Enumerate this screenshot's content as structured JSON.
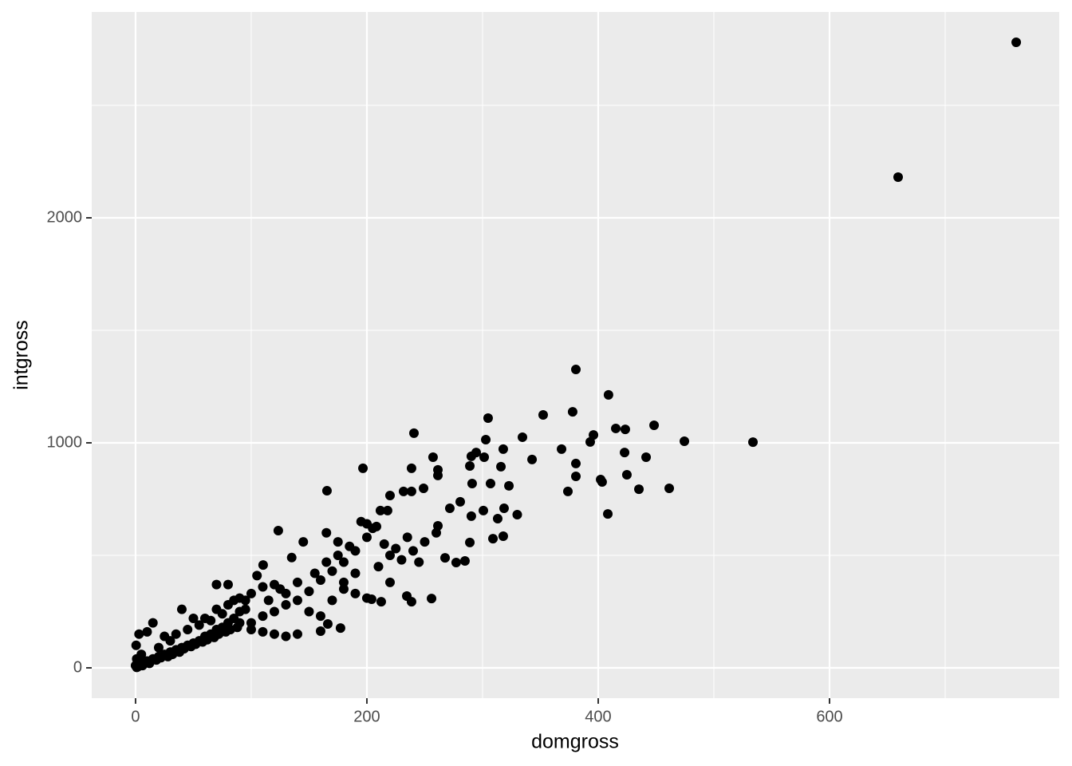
{
  "chart_data": {
    "type": "scatter",
    "x_label": "domgross",
    "y_label": "intgross",
    "color": "#000000",
    "grid": true,
    "xlim": [
      -37.9,
      798.6
    ],
    "ylim": [
      -134.8,
      2914.9
    ],
    "xticks": [
      0,
      200,
      400,
      600
    ],
    "yticks": [
      0,
      1000,
      2000
    ],
    "x": [
      761.4,
      659.3,
      533.8,
      474.5,
      461.4,
      448.3,
      441.4,
      435.2,
      424.8,
      422.8,
      423.4,
      415.2,
      408.9,
      408.3,
      403.4,
      402.1,
      395.9,
      393.1,
      380.7,
      380.7,
      380.7,
      377.9,
      373.8,
      368.3,
      352.4,
      342.8,
      334.5,
      330,
      322.8,
      318.6,
      317.9,
      317.9,
      315.9,
      313.1,
      309,
      306.9,
      304.8,
      302.8,
      301.4,
      300.7,
      294.5,
      290.3,
      291,
      290.3,
      289,
      289,
      284.8,
      280.7,
      277.2,
      271.7,
      267.6,
      261.4,
      261.4,
      261.4,
      257.2,
      255.9,
      249,
      240.7,
      238.6,
      238.6,
      238.6,
      234.5,
      231.7,
      220,
      217.9,
      211.7,
      208.3,
      204.1,
      212.4,
      196.6,
      165.5,
      123.4,
      110.3,
      166.2,
      177.2,
      160,
      200,
      190,
      180,
      170,
      160,
      150,
      140,
      130,
      120,
      110,
      100,
      210,
      220,
      230,
      240,
      250,
      245,
      260,
      180,
      175,
      165,
      155,
      145,
      135,
      125,
      115,
      105,
      95,
      90,
      85,
      80,
      75,
      70,
      65,
      60,
      55,
      50,
      45,
      40,
      35,
      30,
      25,
      20,
      15,
      10,
      5,
      2,
      1,
      0.5,
      3,
      10,
      15,
      40,
      50,
      70,
      80,
      90,
      100,
      110,
      120,
      130,
      140,
      150,
      160,
      170,
      180,
      190,
      200,
      190,
      220,
      200,
      205,
      215,
      225,
      235,
      195,
      185,
      175,
      165,
      60,
      70,
      80,
      90,
      100,
      110,
      120,
      130,
      140,
      30,
      20,
      25,
      35,
      45,
      55,
      65,
      75,
      85,
      95,
      5,
      8,
      12,
      18,
      22,
      28,
      32,
      38,
      42,
      48,
      52,
      58,
      62,
      68,
      72,
      78,
      82,
      88,
      0,
      1,
      3,
      6
    ],
    "y": [
      2780,
      2181,
      1003,
      1007,
      798,
      1078,
      936,
      794,
      858,
      957,
      1060,
      1064,
      1213,
      684,
      826,
      837,
      1035,
      1004,
      1326,
      908,
      851,
      1138,
      784,
      972,
      1124,
      926,
      1025,
      681,
      809,
      709,
      972,
      585,
      894,
      663,
      574,
      819,
      1110,
      1014,
      936,
      699,
      957,
      674,
      819,
      940,
      897,
      557,
      475,
      738,
      468,
      709,
      489,
      855,
      880,
      631,
      936,
      308,
      798,
      1043,
      887,
      784,
      294,
      319,
      784,
      766,
      699,
      699,
      628,
      305,
      294,
      887,
      787,
      610,
      457,
      195,
      177,
      163,
      580,
      520,
      470,
      430,
      390,
      340,
      300,
      280,
      250,
      230,
      200,
      450,
      500,
      480,
      520,
      560,
      470,
      600,
      380,
      560,
      600,
      420,
      560,
      490,
      350,
      300,
      410,
      300,
      250,
      220,
      200,
      180,
      170,
      150,
      140,
      120,
      110,
      100,
      90,
      80,
      70,
      60,
      50,
      40,
      30,
      15,
      5,
      2,
      100,
      150,
      160,
      200,
      260,
      220,
      370,
      370,
      310,
      330,
      360,
      370,
      330,
      380,
      250,
      230,
      300,
      350,
      330,
      310,
      420,
      380,
      640,
      620,
      550,
      530,
      580,
      650,
      540,
      500,
      470,
      220,
      260,
      280,
      200,
      170,
      160,
      150,
      140,
      150,
      120,
      90,
      140,
      150,
      170,
      190,
      210,
      240,
      300,
      260,
      60,
      30,
      20,
      35,
      45,
      50,
      60,
      70,
      85,
      95,
      105,
      115,
      125,
      135,
      150,
      160,
      170,
      180,
      10,
      40,
      20,
      10
    ]
  }
}
